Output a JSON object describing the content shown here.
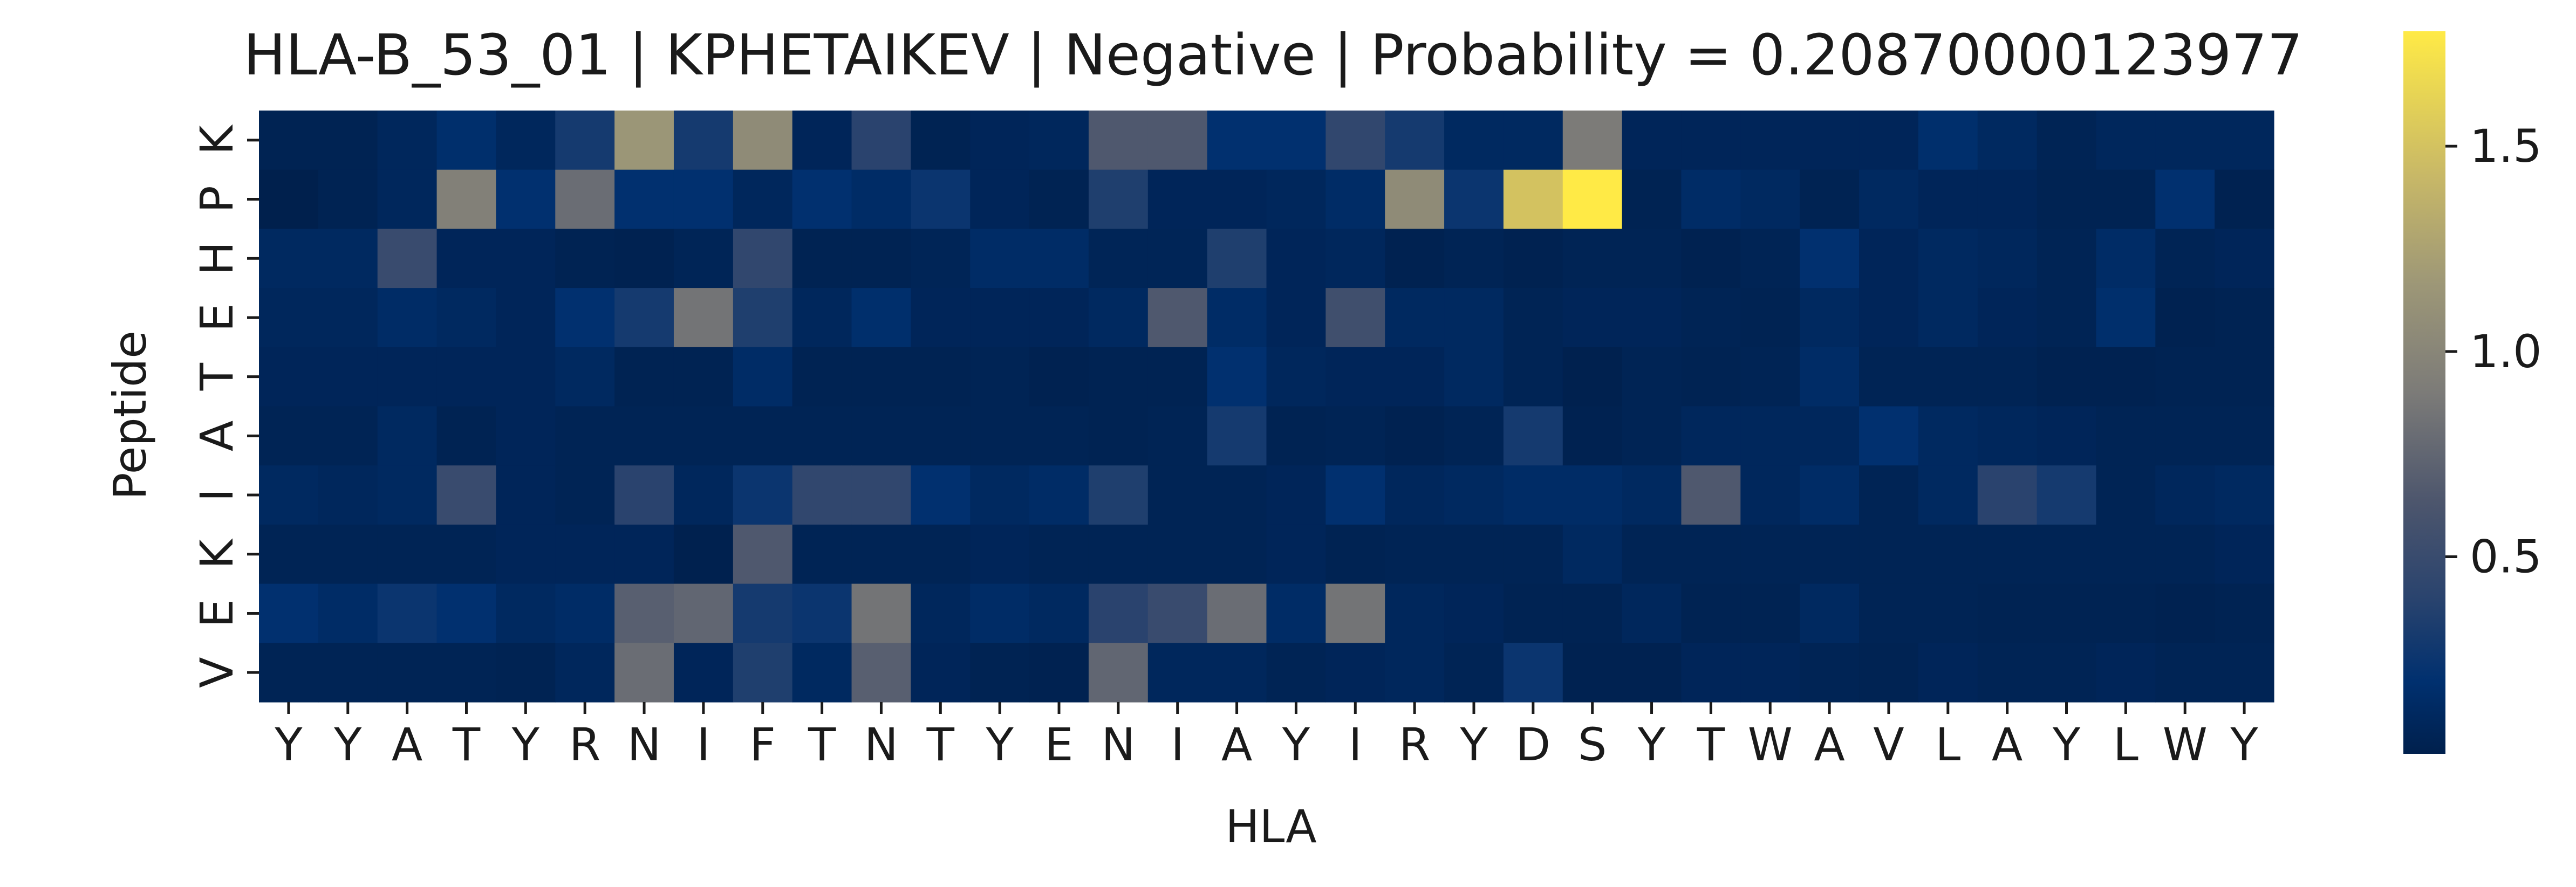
{
  "chart_data": {
    "type": "heatmap",
    "title": "HLA-B_53_01 | KPHETAIKEV | Negative | Probability = 0.20870000123977",
    "xlabel": "HLA",
    "ylabel": "Peptide",
    "x_tick_labels": [
      "Y",
      "Y",
      "A",
      "T",
      "Y",
      "R",
      "N",
      "I",
      "F",
      "T",
      "N",
      "T",
      "Y",
      "E",
      "N",
      "I",
      "A",
      "Y",
      "I",
      "R",
      "Y",
      "D",
      "S",
      "Y",
      "T",
      "W",
      "A",
      "V",
      "L",
      "A",
      "Y",
      "L",
      "W",
      "Y"
    ],
    "y_tick_labels": [
      "K",
      "P",
      "H",
      "E",
      "T",
      "A",
      "I",
      "K",
      "E",
      "V"
    ],
    "colormap": "cividis",
    "colorbar": {
      "range": [
        0.02,
        1.78
      ],
      "ticks": [
        0.5,
        1.0,
        1.5
      ],
      "tick_labels": [
        "0.5",
        "1.0",
        "1.5"
      ]
    },
    "values": [
      [
        0.05,
        0.05,
        0.1,
        0.18,
        0.1,
        0.3,
        1.15,
        0.3,
        1.05,
        0.08,
        0.4,
        0.05,
        0.08,
        0.1,
        0.65,
        0.65,
        0.2,
        0.2,
        0.45,
        0.3,
        0.12,
        0.12,
        0.9,
        0.08,
        0.08,
        0.08,
        0.08,
        0.08,
        0.18,
        0.12,
        0.06,
        0.1,
        0.1,
        0.1
      ],
      [
        0.02,
        0.05,
        0.1,
        0.95,
        0.2,
        0.8,
        0.2,
        0.2,
        0.1,
        0.2,
        0.15,
        0.25,
        0.08,
        0.05,
        0.35,
        0.08,
        0.08,
        0.1,
        0.15,
        1.05,
        0.25,
        1.5,
        1.78,
        0.05,
        0.15,
        0.12,
        0.05,
        0.12,
        0.08,
        0.08,
        0.05,
        0.05,
        0.2,
        0.04
      ],
      [
        0.12,
        0.12,
        0.5,
        0.08,
        0.08,
        0.05,
        0.04,
        0.07,
        0.45,
        0.05,
        0.05,
        0.07,
        0.15,
        0.15,
        0.07,
        0.07,
        0.35,
        0.08,
        0.1,
        0.04,
        0.06,
        0.04,
        0.06,
        0.06,
        0.04,
        0.06,
        0.2,
        0.08,
        0.12,
        0.1,
        0.06,
        0.15,
        0.06,
        0.08
      ],
      [
        0.1,
        0.1,
        0.15,
        0.12,
        0.08,
        0.2,
        0.3,
        0.85,
        0.35,
        0.1,
        0.18,
        0.08,
        0.08,
        0.08,
        0.12,
        0.65,
        0.15,
        0.08,
        0.55,
        0.12,
        0.12,
        0.06,
        0.08,
        0.08,
        0.06,
        0.05,
        0.12,
        0.08,
        0.12,
        0.08,
        0.06,
        0.18,
        0.04,
        0.05
      ],
      [
        0.08,
        0.08,
        0.08,
        0.08,
        0.08,
        0.12,
        0.05,
        0.05,
        0.15,
        0.05,
        0.05,
        0.05,
        0.06,
        0.04,
        0.05,
        0.05,
        0.2,
        0.1,
        0.08,
        0.08,
        0.12,
        0.06,
        0.03,
        0.06,
        0.05,
        0.06,
        0.15,
        0.06,
        0.06,
        0.06,
        0.04,
        0.04,
        0.05,
        0.05
      ],
      [
        0.06,
        0.06,
        0.12,
        0.05,
        0.08,
        0.06,
        0.06,
        0.06,
        0.06,
        0.06,
        0.06,
        0.06,
        0.06,
        0.06,
        0.05,
        0.06,
        0.3,
        0.05,
        0.06,
        0.04,
        0.06,
        0.3,
        0.04,
        0.06,
        0.1,
        0.1,
        0.1,
        0.2,
        0.12,
        0.1,
        0.08,
        0.06,
        0.06,
        0.06
      ],
      [
        0.12,
        0.1,
        0.12,
        0.5,
        0.08,
        0.06,
        0.4,
        0.1,
        0.25,
        0.45,
        0.45,
        0.2,
        0.12,
        0.15,
        0.35,
        0.06,
        0.06,
        0.08,
        0.2,
        0.1,
        0.12,
        0.15,
        0.15,
        0.12,
        0.65,
        0.1,
        0.15,
        0.06,
        0.12,
        0.4,
        0.3,
        0.06,
        0.1,
        0.12
      ],
      [
        0.06,
        0.06,
        0.06,
        0.06,
        0.08,
        0.08,
        0.08,
        0.03,
        0.65,
        0.06,
        0.06,
        0.06,
        0.08,
        0.06,
        0.06,
        0.06,
        0.06,
        0.08,
        0.05,
        0.06,
        0.06,
        0.06,
        0.12,
        0.06,
        0.06,
        0.06,
        0.06,
        0.06,
        0.06,
        0.06,
        0.06,
        0.06,
        0.06,
        0.08
      ],
      [
        0.2,
        0.15,
        0.25,
        0.2,
        0.12,
        0.15,
        0.7,
        0.75,
        0.3,
        0.25,
        0.85,
        0.1,
        0.15,
        0.12,
        0.4,
        0.5,
        0.8,
        0.15,
        0.85,
        0.1,
        0.08,
        0.05,
        0.05,
        0.1,
        0.05,
        0.05,
        0.12,
        0.06,
        0.06,
        0.05,
        0.05,
        0.05,
        0.04,
        0.05
      ],
      [
        0.06,
        0.06,
        0.06,
        0.06,
        0.05,
        0.1,
        0.8,
        0.08,
        0.35,
        0.12,
        0.7,
        0.08,
        0.05,
        0.04,
        0.75,
        0.1,
        0.1,
        0.06,
        0.08,
        0.1,
        0.06,
        0.25,
        0.04,
        0.04,
        0.08,
        0.08,
        0.06,
        0.05,
        0.08,
        0.06,
        0.06,
        0.08,
        0.06,
        0.06
      ]
    ]
  }
}
